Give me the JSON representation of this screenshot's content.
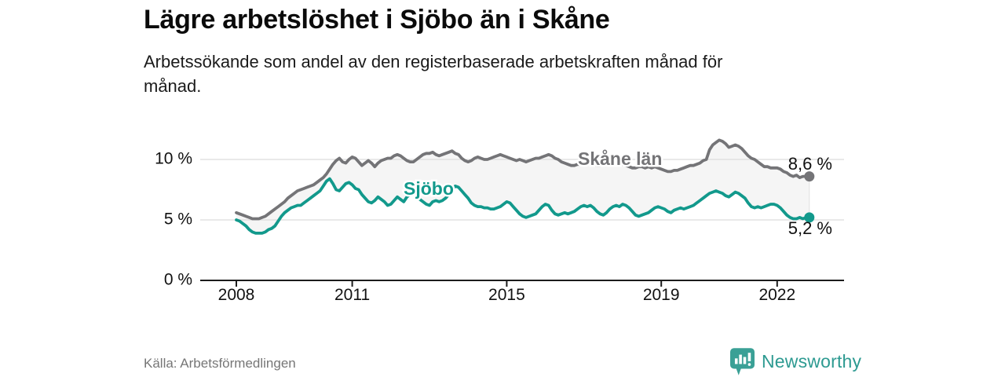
{
  "header": {
    "title": "Lägre arbetslöshet i Sjöbo än i Skåne",
    "subtitle": "Arbetssökande som andel av den registerbaserade arbetskraften månad för månad."
  },
  "chart_data": {
    "type": "line",
    "unit": "%",
    "frequency": "monthly",
    "x_start": "2008-01",
    "x_end": "2022-11",
    "x_ticks": [
      2008,
      2011,
      2015,
      2019,
      2022
    ],
    "y_ticks": [
      {
        "value": 0,
        "label": "0 %"
      },
      {
        "value": 5,
        "label": "5 %"
      },
      {
        "value": 10,
        "label": "10 %"
      }
    ],
    "ylim": [
      0,
      12.8
    ],
    "grid": "horizontal",
    "fill_between_color": "#f5f5f5",
    "grid_color": "#dcdcdc",
    "axis_color": "#1c1c1c",
    "series": [
      {
        "name": "Skåne län",
        "key": "skane-lan",
        "color": "#747477",
        "end_label": "8,6 %",
        "end_value": 8.6,
        "values": [
          5.6,
          5.5,
          5.4,
          5.3,
          5.2,
          5.1,
          5.1,
          5.1,
          5.2,
          5.3,
          5.5,
          5.7,
          5.9,
          6.1,
          6.3,
          6.5,
          6.8,
          7.0,
          7.2,
          7.4,
          7.5,
          7.6,
          7.7,
          7.8,
          7.9,
          8.1,
          8.3,
          8.5,
          8.8,
          9.2,
          9.6,
          9.9,
          10.1,
          9.8,
          9.7,
          10.0,
          10.2,
          10.1,
          9.8,
          9.5,
          9.7,
          9.9,
          9.7,
          9.4,
          9.7,
          9.9,
          10.0,
          10.1,
          10.1,
          10.3,
          10.4,
          10.3,
          10.1,
          9.9,
          9.8,
          9.8,
          10.0,
          10.2,
          10.4,
          10.5,
          10.5,
          10.6,
          10.4,
          10.3,
          10.4,
          10.5,
          10.6,
          10.7,
          10.5,
          10.4,
          10.1,
          9.9,
          9.8,
          9.9,
          10.1,
          10.2,
          10.1,
          10.0,
          10.0,
          10.1,
          10.2,
          10.3,
          10.4,
          10.3,
          10.2,
          10.1,
          10.0,
          9.9,
          10.0,
          9.9,
          9.8,
          9.9,
          10.0,
          10.1,
          10.1,
          10.2,
          10.3,
          10.4,
          10.3,
          10.1,
          10.0,
          9.8,
          9.7,
          9.6,
          9.5,
          9.5,
          9.6,
          9.6,
          9.6,
          9.7,
          9.7,
          9.6,
          9.5,
          9.5,
          9.6,
          9.6,
          9.7,
          9.7,
          9.6,
          9.6,
          9.6,
          9.5,
          9.4,
          9.3,
          9.3,
          9.4,
          9.4,
          9.3,
          9.4,
          9.3,
          9.4,
          9.3,
          9.2,
          9.1,
          9.0,
          9.0,
          9.1,
          9.1,
          9.2,
          9.3,
          9.4,
          9.5,
          9.5,
          9.6,
          9.7,
          9.9,
          10.0,
          10.8,
          11.2,
          11.4,
          11.6,
          11.5,
          11.3,
          11.0,
          11.1,
          11.2,
          11.1,
          10.9,
          10.6,
          10.3,
          10.1,
          10.0,
          9.8,
          9.6,
          9.4,
          9.4,
          9.3,
          9.3,
          9.3,
          9.2,
          9.0,
          8.9,
          8.7,
          8.6,
          8.7,
          8.5,
          8.6,
          8.6,
          8.6
        ]
      },
      {
        "name": "Sjöbo",
        "key": "sjobo",
        "color": "#12998c",
        "end_label": "5,2 %",
        "end_value": 5.2,
        "values": [
          5.0,
          4.9,
          4.7,
          4.5,
          4.2,
          4.0,
          3.9,
          3.9,
          3.9,
          4.0,
          4.2,
          4.3,
          4.5,
          4.9,
          5.3,
          5.6,
          5.8,
          6.0,
          6.1,
          6.2,
          6.2,
          6.4,
          6.6,
          6.8,
          7.0,
          7.2,
          7.4,
          7.8,
          8.2,
          8.4,
          8.0,
          7.5,
          7.4,
          7.7,
          8.0,
          8.1,
          7.9,
          7.6,
          7.5,
          7.1,
          6.8,
          6.5,
          6.4,
          6.6,
          6.9,
          6.7,
          6.5,
          6.2,
          6.3,
          6.6,
          6.9,
          6.7,
          6.5,
          6.9,
          7.1,
          7.2,
          7.0,
          6.7,
          6.5,
          6.3,
          6.2,
          6.5,
          6.6,
          6.5,
          6.6,
          6.8,
          7.1,
          7.5,
          7.8,
          7.7,
          7.4,
          7.1,
          6.8,
          6.4,
          6.2,
          6.1,
          6.1,
          6.0,
          6.0,
          5.9,
          5.9,
          6.0,
          6.1,
          6.3,
          6.5,
          6.4,
          6.1,
          5.8,
          5.5,
          5.3,
          5.2,
          5.3,
          5.4,
          5.5,
          5.8,
          6.1,
          6.3,
          6.2,
          5.8,
          5.5,
          5.4,
          5.5,
          5.6,
          5.5,
          5.6,
          5.7,
          5.9,
          6.1,
          6.2,
          6.1,
          6.2,
          6.0,
          5.7,
          5.5,
          5.4,
          5.6,
          5.9,
          6.1,
          6.2,
          6.1,
          6.3,
          6.2,
          6.0,
          5.7,
          5.4,
          5.3,
          5.4,
          5.5,
          5.6,
          5.8,
          6.0,
          6.1,
          6.0,
          5.9,
          5.7,
          5.6,
          5.8,
          5.9,
          6.0,
          5.9,
          6.0,
          6.1,
          6.2,
          6.4,
          6.6,
          6.8,
          7.0,
          7.2,
          7.3,
          7.4,
          7.3,
          7.2,
          7.0,
          6.9,
          7.1,
          7.3,
          7.2,
          7.0,
          6.8,
          6.4,
          6.1,
          6.0,
          6.1,
          6.0,
          6.1,
          6.2,
          6.3,
          6.3,
          6.2,
          6.0,
          5.7,
          5.4,
          5.2,
          5.1,
          5.1,
          5.2,
          5.1,
          5.2,
          5.2
        ]
      }
    ]
  },
  "footer": {
    "source": "Källa: Arbetsförmedlingen",
    "brand": "Newsworthy",
    "brand_color": "#2d9a91"
  },
  "icons": {
    "brand_icon": "bar-chart-speech-bubble-icon"
  }
}
